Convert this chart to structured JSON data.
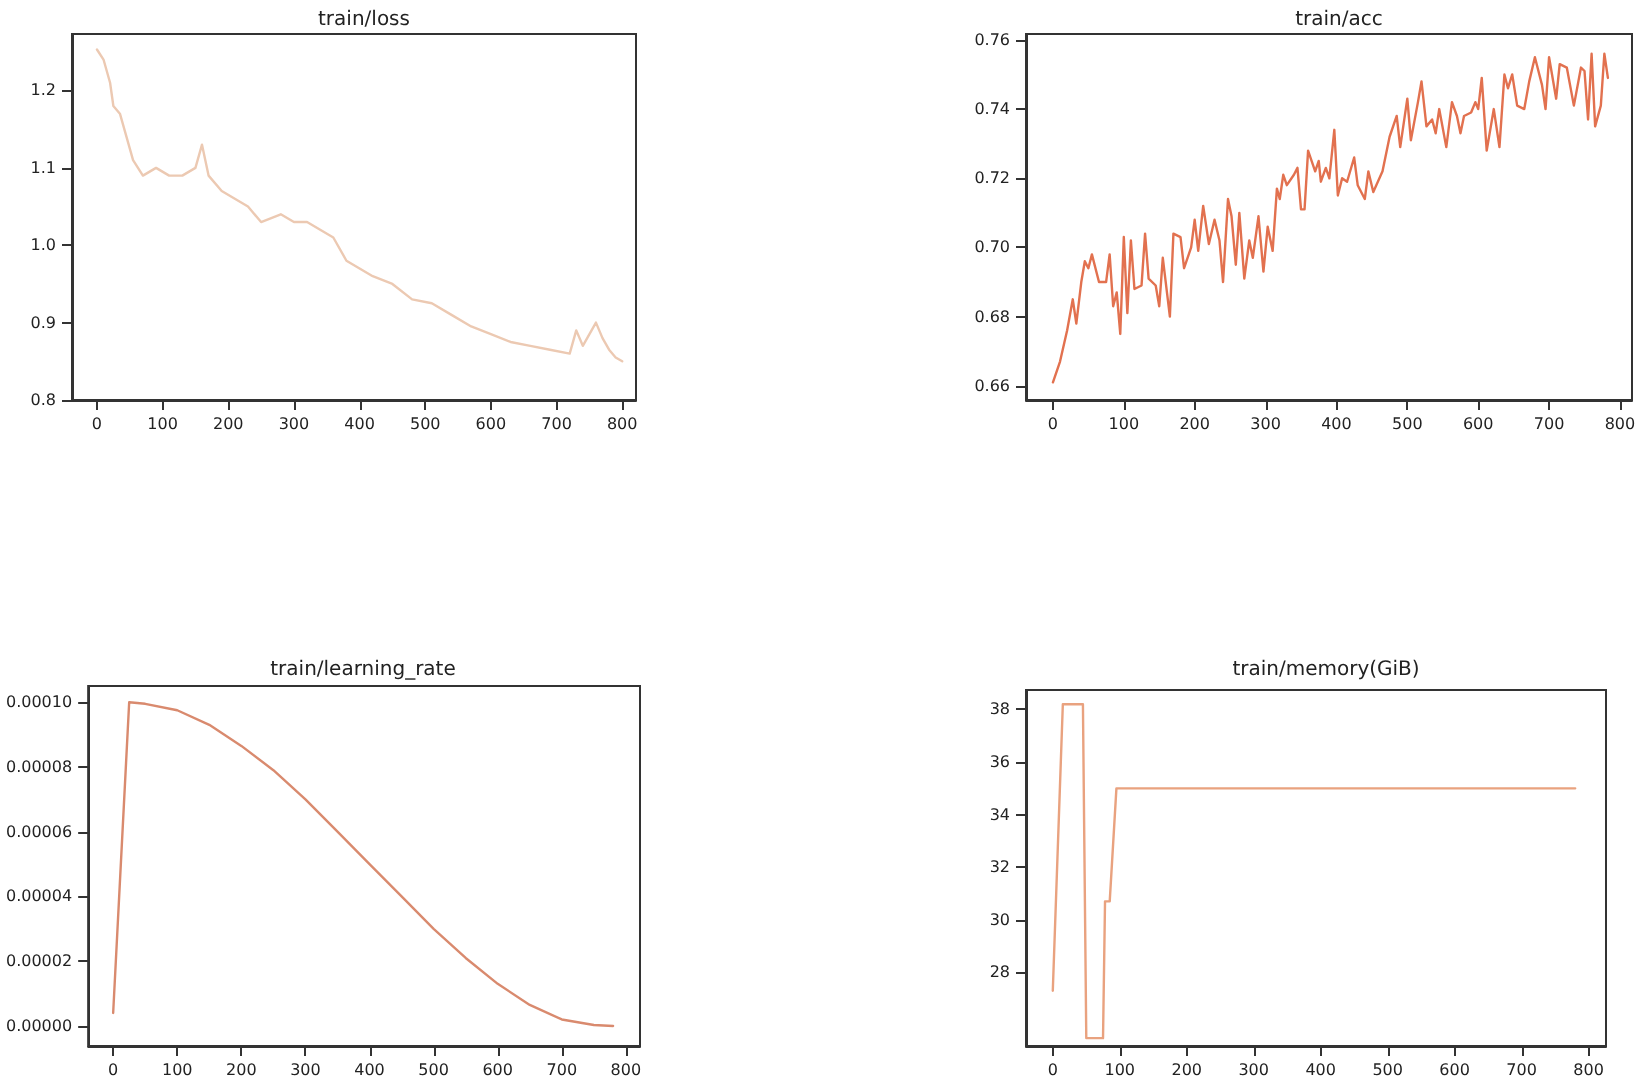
{
  "chart_data": [
    {
      "type": "line",
      "title": "train/loss",
      "x": [
        0,
        10,
        20,
        25,
        35,
        45,
        55,
        70,
        90,
        110,
        130,
        150,
        160,
        170,
        190,
        210,
        230,
        250,
        280,
        300,
        320,
        340,
        360,
        380,
        400,
        420,
        450,
        480,
        510,
        540,
        570,
        600,
        630,
        660,
        690,
        720,
        730,
        740,
        760,
        770,
        780,
        790,
        800
      ],
      "series": [
        {
          "color": "#ecc9b2",
          "values": [
            1.253,
            1.24,
            1.21,
            1.18,
            1.17,
            1.14,
            1.11,
            1.09,
            1.1,
            1.09,
            1.09,
            1.1,
            1.13,
            1.09,
            1.07,
            1.06,
            1.05,
            1.03,
            1.04,
            1.03,
            1.03,
            1.02,
            1.01,
            0.98,
            0.97,
            0.96,
            0.95,
            0.93,
            0.925,
            0.91,
            0.895,
            0.885,
            0.875,
            0.87,
            0.865,
            0.86,
            0.89,
            0.87,
            0.9,
            0.88,
            0.865,
            0.855,
            0.85
          ]
        }
      ],
      "xlim": [
        -38,
        821
      ],
      "xticks": [
        0,
        100,
        200,
        300,
        400,
        500,
        600,
        700,
        800
      ],
      "ylim": [
        0.8,
        1.273
      ],
      "yticks": [
        0.8,
        0.9,
        {
          "value": 1,
          "label": "1.0"
        },
        1.1,
        1.2
      ],
      "grid": false,
      "marker": "none",
      "line_style": "solid"
    },
    {
      "type": "line",
      "title": "train/acc",
      "x": [
        0,
        10,
        20,
        28,
        33,
        40,
        45,
        50,
        55,
        65,
        75,
        80,
        85,
        90,
        95,
        100,
        105,
        110,
        115,
        125,
        130,
        135,
        145,
        150,
        155,
        165,
        170,
        180,
        185,
        195,
        200,
        205,
        212,
        220,
        228,
        235,
        240,
        247,
        252,
        258,
        263,
        270,
        277,
        282,
        290,
        297,
        303,
        310,
        316,
        320,
        325,
        330,
        340,
        345,
        350,
        355,
        360,
        370,
        375,
        378,
        385,
        390,
        397,
        402,
        408,
        415,
        425,
        430,
        440,
        445,
        452,
        465,
        475,
        485,
        490,
        500,
        505,
        515,
        520,
        527,
        535,
        540,
        545,
        555,
        563,
        570,
        575,
        580,
        590,
        596,
        600,
        605,
        612,
        622,
        630,
        637,
        642,
        648,
        655,
        665,
        672,
        680,
        690,
        695,
        700,
        710,
        715,
        725,
        735,
        745,
        750,
        755,
        760,
        765,
        773,
        778,
        783
      ],
      "series": [
        {
          "color": "#e2714f",
          "values": [
            0.661,
            0.667,
            0.676,
            0.685,
            0.678,
            0.69,
            0.696,
            0.694,
            0.698,
            0.69,
            0.69,
            0.698,
            0.683,
            0.687,
            0.675,
            0.703,
            0.681,
            0.702,
            0.688,
            0.689,
            0.704,
            0.691,
            0.689,
            0.683,
            0.697,
            0.68,
            0.704,
            0.703,
            0.694,
            0.7,
            0.708,
            0.699,
            0.712,
            0.701,
            0.708,
            0.702,
            0.69,
            0.714,
            0.709,
            0.695,
            0.71,
            0.691,
            0.702,
            0.697,
            0.709,
            0.693,
            0.706,
            0.699,
            0.717,
            0.714,
            0.721,
            0.718,
            0.721,
            0.723,
            0.711,
            0.711,
            0.728,
            0.722,
            0.725,
            0.719,
            0.723,
            0.72,
            0.734,
            0.715,
            0.72,
            0.719,
            0.726,
            0.718,
            0.714,
            0.722,
            0.716,
            0.722,
            0.732,
            0.738,
            0.729,
            0.743,
            0.731,
            0.742,
            0.748,
            0.735,
            0.737,
            0.733,
            0.74,
            0.729,
            0.742,
            0.738,
            0.733,
            0.738,
            0.739,
            0.742,
            0.74,
            0.749,
            0.728,
            0.74,
            0.729,
            0.75,
            0.746,
            0.75,
            0.741,
            0.74,
            0.748,
            0.755,
            0.747,
            0.74,
            0.755,
            0.743,
            0.753,
            0.752,
            0.741,
            0.752,
            0.751,
            0.737,
            0.756,
            0.735,
            0.741,
            0.756,
            0.749
          ]
        }
      ],
      "xlim": [
        -38,
        817
      ],
      "xticks": [
        0,
        100,
        200,
        300,
        400,
        500,
        600,
        700,
        800
      ],
      "ylim": [
        0.6559,
        0.7617
      ],
      "yticks": [
        {
          "value": 0.66,
          "label": "0.66"
        },
        {
          "value": 0.68,
          "label": "0.68"
        },
        {
          "value": 0.7,
          "label": "0.70"
        },
        {
          "value": 0.72,
          "label": "0.72"
        },
        {
          "value": 0.74,
          "label": "0.74"
        },
        {
          "value": 0.76,
          "label": "0.76"
        }
      ],
      "grid": false,
      "marker": "none",
      "line_style": "solid"
    },
    {
      "type": "line",
      "title": "train/learning_rate",
      "x": [
        0,
        25,
        50,
        100,
        150,
        200,
        250,
        300,
        350,
        400,
        450,
        500,
        550,
        600,
        650,
        700,
        750,
        780
      ],
      "series": [
        {
          "color": "#d98a6e",
          "values": [
            4e-06,
            0.0001,
            9.95e-05,
            9.75e-05,
            9.3e-05,
            8.65e-05,
            7.9e-05,
            7e-05,
            6e-05,
            5e-05,
            4e-05,
            3e-05,
            2.1e-05,
            1.3e-05,
            6.5e-06,
            2e-06,
            3e-07,
            0
          ]
        }
      ],
      "xlim": [
        -39,
        822
      ],
      "xticks": [
        0,
        100,
        200,
        300,
        400,
        500,
        600,
        700,
        800
      ],
      "ylim": [
        -6.2e-06,
        0.000105
      ],
      "yticks": [
        {
          "value": 0,
          "label": "0.00000"
        },
        {
          "value": 2e-05,
          "label": "0.00002"
        },
        {
          "value": 4e-05,
          "label": "0.00004"
        },
        {
          "value": 6e-05,
          "label": "0.00006"
        },
        {
          "value": 8e-05,
          "label": "0.00008"
        },
        {
          "value": 0.0001,
          "label": "0.00010"
        }
      ],
      "grid": false,
      "marker": "none",
      "line_style": "solid"
    },
    {
      "type": "line",
      "title": "train/memory(GiB)",
      "x": [
        0,
        15,
        45,
        50,
        75,
        78,
        85,
        95,
        780
      ],
      "series": [
        {
          "color": "#e9a27f",
          "values": [
            27.3,
            38.2,
            38.2,
            25.5,
            25.5,
            30.7,
            30.7,
            35,
            35
          ]
        }
      ],
      "xlim": [
        -40,
        826
      ],
      "xticks": [
        0,
        100,
        200,
        300,
        400,
        500,
        600,
        700,
        800
      ],
      "ylim": [
        25.2,
        38.74
      ],
      "yticks": [
        28,
        30,
        32,
        34,
        36,
        38
      ],
      "grid": false,
      "marker": "none",
      "line_style": "solid"
    }
  ]
}
